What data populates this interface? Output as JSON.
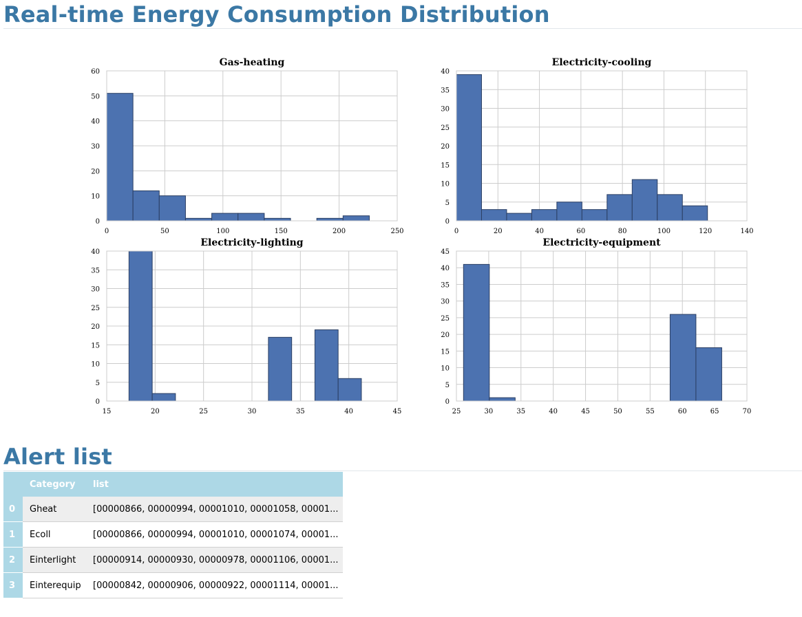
{
  "header": {
    "title": "Real-time Energy Consumption Distribution"
  },
  "alerts": {
    "title": "Alert list",
    "columns": [
      "",
      "Category",
      "list"
    ],
    "rows": [
      {
        "index": "0",
        "category": "Gheat",
        "list": "[00000866, 00000994, 00001010, 00001058, 00001..."
      },
      {
        "index": "1",
        "category": "Ecoll",
        "list": "[00000866, 00000994, 00001010, 00001074, 00001..."
      },
      {
        "index": "2",
        "category": "Einterlight",
        "list": "[00000914, 00000930, 00000978, 00001106, 00001..."
      },
      {
        "index": "3",
        "category": "Einterequip",
        "list": "[00000842, 00000906, 00000922, 00001114, 00001..."
      }
    ]
  },
  "colors": {
    "bar": "#4c72b0",
    "barEdge": "#2b3f63",
    "grid": "#cccccc",
    "heading": "#3b78a5",
    "tableHeader": "#add8e6"
  },
  "chart_data": [
    {
      "type": "bar",
      "title": "Gas-heating",
      "xlabel": "",
      "ylabel": "",
      "xlim": [
        0,
        250
      ],
      "ylim": [
        0,
        60
      ],
      "xticks": [
        0,
        50,
        100,
        150,
        200,
        250
      ],
      "yticks": [
        0,
        10,
        20,
        30,
        40,
        50,
        60
      ],
      "bin_edges": [
        0,
        22.6,
        45.2,
        67.8,
        90.4,
        113,
        135.6,
        158.2,
        180.8,
        203.4,
        226
      ],
      "values": [
        51,
        12,
        10,
        1,
        3,
        3,
        1,
        0,
        1,
        2
      ],
      "grid": true
    },
    {
      "type": "bar",
      "title": "Electricity-cooling",
      "xlabel": "",
      "ylabel": "",
      "xlim": [
        0,
        140
      ],
      "ylim": [
        0,
        40
      ],
      "xticks": [
        0,
        20,
        40,
        60,
        80,
        100,
        120,
        140
      ],
      "yticks": [
        0,
        5,
        10,
        15,
        20,
        25,
        30,
        35,
        40
      ],
      "bin_edges": [
        0,
        12.1,
        24.2,
        36.3,
        48.4,
        60.5,
        72.6,
        84.7,
        96.8,
        108.9,
        121
      ],
      "values": [
        39,
        3,
        2,
        3,
        5,
        3,
        7,
        11,
        7,
        4
      ],
      "grid": true
    },
    {
      "type": "bar",
      "title": "Electricity-lighting",
      "xlabel": "",
      "ylabel": "",
      "xlim": [
        15,
        45
      ],
      "ylim": [
        0,
        40
      ],
      "xticks": [
        15,
        20,
        25,
        30,
        35,
        40,
        45
      ],
      "yticks": [
        0,
        5,
        10,
        15,
        20,
        25,
        30,
        35,
        40
      ],
      "bin_edges": [
        17.3,
        19.7,
        22.1,
        24.5,
        26.9,
        29.3,
        31.7,
        34.1,
        36.5,
        38.9,
        41.3
      ],
      "values": [
        40,
        2,
        0,
        0,
        0,
        0,
        17,
        0,
        19,
        6
      ],
      "grid": true
    },
    {
      "type": "bar",
      "title": "Electricity-equipment",
      "xlabel": "",
      "ylabel": "",
      "xlim": [
        25,
        70
      ],
      "ylim": [
        0,
        45
      ],
      "xticks": [
        25,
        30,
        35,
        40,
        45,
        50,
        55,
        60,
        65,
        70
      ],
      "yticks": [
        0,
        5,
        10,
        15,
        20,
        25,
        30,
        35,
        40,
        45
      ],
      "bin_edges": [
        26.1,
        30.1,
        34.1,
        38.1,
        42.1,
        46.1,
        50.1,
        54.1,
        58.1,
        62.1,
        66.1
      ],
      "values": [
        41,
        1,
        0,
        0,
        0,
        0,
        0,
        0,
        26,
        16
      ],
      "grid": true
    }
  ]
}
